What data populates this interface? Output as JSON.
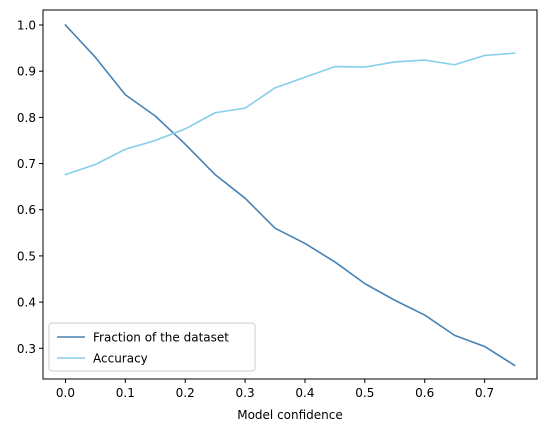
{
  "chart_data": {
    "type": "line",
    "title": "",
    "xlabel": "Model confidence",
    "ylabel": "",
    "xlim": [
      -0.0375,
      0.7875
    ],
    "ylim": [
      0.2335,
      1.0325
    ],
    "xticks": [
      0.0,
      0.1,
      0.2,
      0.3,
      0.4,
      0.5,
      0.6,
      0.7
    ],
    "xtick_labels": [
      "0.0",
      "0.1",
      "0.2",
      "0.3",
      "0.4",
      "0.5",
      "0.6",
      "0.7"
    ],
    "yticks": [
      0.3,
      0.4,
      0.5,
      0.6,
      0.7,
      0.8,
      0.9,
      1.0
    ],
    "ytick_labels": [
      "0.3",
      "0.4",
      "0.5",
      "0.6",
      "0.7",
      "0.8",
      "0.9",
      "1.0"
    ],
    "grid": false,
    "legend_position": "lower-left",
    "x": [
      0.0,
      0.05,
      0.1,
      0.15,
      0.2,
      0.25,
      0.3,
      0.35,
      0.4,
      0.45,
      0.5,
      0.55,
      0.6,
      0.65,
      0.7,
      0.75
    ],
    "series": [
      {
        "name": "Fraction of the dataset",
        "color": "#4682b4",
        "values": [
          1.0,
          0.93,
          0.849,
          0.803,
          0.742,
          0.676,
          0.625,
          0.56,
          0.527,
          0.487,
          0.44,
          0.404,
          0.372,
          0.328,
          0.304,
          0.263
        ]
      },
      {
        "name": "Accuracy",
        "color": "#87ceeb",
        "values": [
          0.676,
          0.698,
          0.731,
          0.75,
          0.775,
          0.81,
          0.82,
          0.864,
          0.887,
          0.91,
          0.909,
          0.92,
          0.924,
          0.914,
          0.934,
          0.939
        ]
      }
    ]
  }
}
